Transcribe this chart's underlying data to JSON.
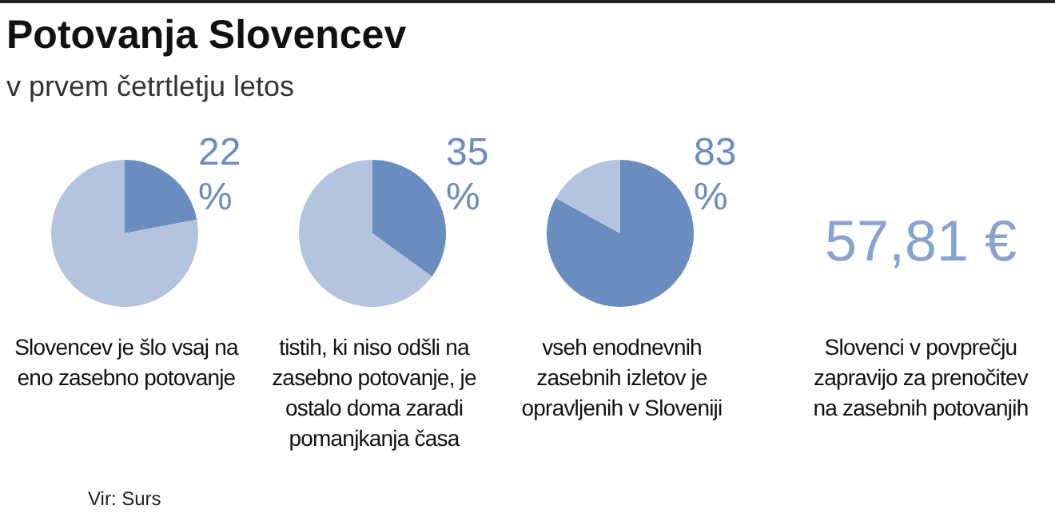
{
  "chart_data": [
    {
      "type": "pie",
      "title": "Potovanja Slovencev",
      "subtitle": "v prvem četrtletju letos",
      "categories": [
        null,
        null
      ],
      "values": [
        22,
        78
      ],
      "colors": [
        "#6b8cbe",
        "#b4c4de"
      ],
      "value_labels": [
        "22 %",
        null
      ],
      "annotations": [
        "Slovencev je šlo vsaj na eno zasebno potovanje"
      ]
    },
    {
      "type": "pie",
      "categories": [
        null,
        null
      ],
      "values": [
        35,
        65
      ],
      "colors": [
        "#6b8cbe",
        "#b4c4de"
      ],
      "value_labels": [
        "35 %",
        null
      ],
      "annotations": [
        "tistih, ki niso odšli na zasebno potovanje, je ostalo doma zaradi pomanjkanja časa"
      ]
    },
    {
      "type": "pie",
      "categories": [
        null,
        null
      ],
      "values": [
        83,
        17
      ],
      "colors": [
        "#6b8cbe",
        "#b4c4de"
      ],
      "value_labels": [
        "83 %",
        null
      ],
      "annotations": [
        "vseh enodnevnih zasebnih izletov je opravljenih v Sloveniji"
      ]
    },
    {
      "type": "other",
      "title": "57,81 €",
      "annotations": [
        "Slovenci v povprečju zapravijo za prenočitev na zasebnih potovanjih",
        "Vir: Surs"
      ]
    }
  ]
}
